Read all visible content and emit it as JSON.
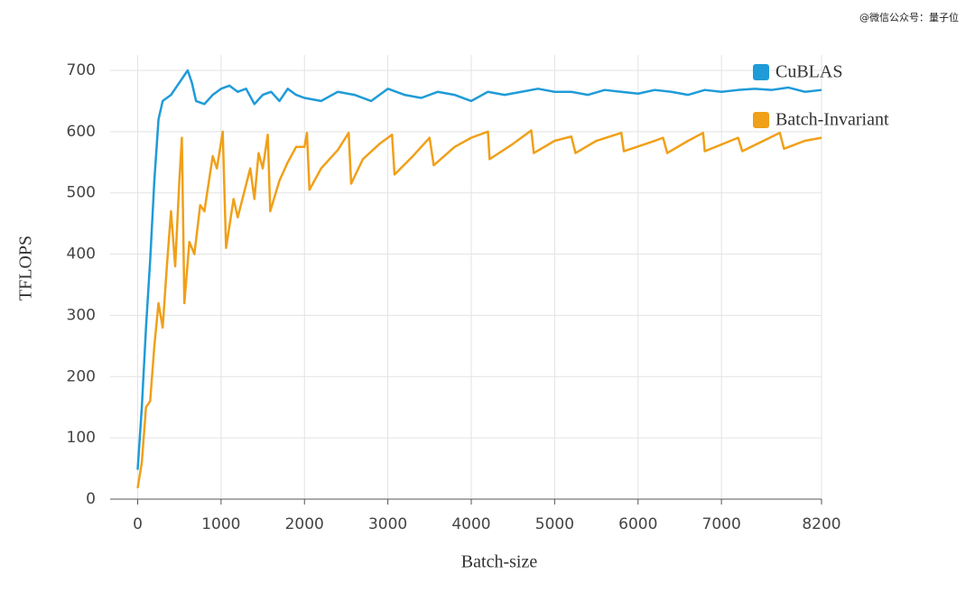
{
  "chart_data": {
    "type": "line",
    "watermark": "@微信公众号：量子位",
    "xlabel": "Batch-size",
    "ylabel": "TFLOPS",
    "xlim": [
      -330,
      8200
    ],
    "ylim": [
      0,
      725
    ],
    "xticks": [
      0,
      1000,
      2000,
      3000,
      4000,
      5000,
      6000,
      7000,
      8200
    ],
    "yticks": [
      0,
      100,
      200,
      300,
      400,
      500,
      600,
      700
    ],
    "grid": true,
    "legend": "upper right",
    "series": [
      {
        "name": "CuBLAS",
        "color": "#1f9bd8",
        "x": [
          0,
          50,
          100,
          150,
          200,
          250,
          300,
          350,
          400,
          450,
          500,
          550,
          600,
          650,
          700,
          800,
          900,
          1000,
          1100,
          1200,
          1300,
          1400,
          1500,
          1600,
          1700,
          1800,
          1900,
          2000,
          2200,
          2400,
          2600,
          2800,
          3000,
          3200,
          3400,
          3600,
          3800,
          4000,
          4200,
          4400,
          4600,
          4800,
          5000,
          5200,
          5400,
          5600,
          5800,
          6000,
          6200,
          6400,
          6600,
          6800,
          7000,
          7200,
          7400,
          7600,
          7800,
          8000,
          8200
        ],
        "values": [
          48,
          150,
          280,
          390,
          520,
          620,
          650,
          655,
          660,
          670,
          680,
          690,
          700,
          680,
          650,
          645,
          660,
          670,
          675,
          665,
          670,
          645,
          660,
          665,
          650,
          670,
          660,
          655,
          650,
          665,
          660,
          650,
          670,
          660,
          655,
          665,
          660,
          650,
          665,
          660,
          665,
          670,
          665,
          665,
          660,
          668,
          665,
          662,
          668,
          665,
          660,
          668,
          665,
          668,
          670,
          668,
          672,
          665,
          668
        ]
      },
      {
        "name": "Batch-Invariant",
        "color": "#f0a019",
        "x": [
          0,
          50,
          100,
          150,
          200,
          250,
          300,
          350,
          400,
          450,
          500,
          530,
          560,
          620,
          680,
          750,
          800,
          900,
          950,
          1020,
          1060,
          1150,
          1200,
          1350,
          1400,
          1450,
          1500,
          1560,
          1590,
          1700,
          1800,
          1900,
          2000,
          2030,
          2060,
          2200,
          2400,
          2530,
          2560,
          2700,
          2900,
          3050,
          3080,
          3300,
          3500,
          3550,
          3800,
          4000,
          4200,
          4220,
          4500,
          4720,
          4750,
          5000,
          5200,
          5250,
          5500,
          5800,
          5830,
          6200,
          6300,
          6350,
          6600,
          6780,
          6800,
          7200,
          7250,
          7700,
          7750,
          8000,
          8200
        ],
        "values": [
          18,
          60,
          150,
          160,
          250,
          320,
          280,
          380,
          470,
          380,
          520,
          590,
          320,
          420,
          400,
          480,
          470,
          560,
          540,
          600,
          410,
          490,
          460,
          540,
          490,
          565,
          540,
          595,
          470,
          520,
          550,
          575,
          575,
          598,
          505,
          540,
          570,
          598,
          515,
          555,
          580,
          595,
          530,
          560,
          590,
          545,
          575,
          590,
          600,
          555,
          580,
          602,
          565,
          585,
          592,
          565,
          585,
          598,
          568,
          585,
          590,
          565,
          585,
          598,
          568,
          590,
          568,
          598,
          572,
          585,
          590
        ]
      }
    ]
  }
}
